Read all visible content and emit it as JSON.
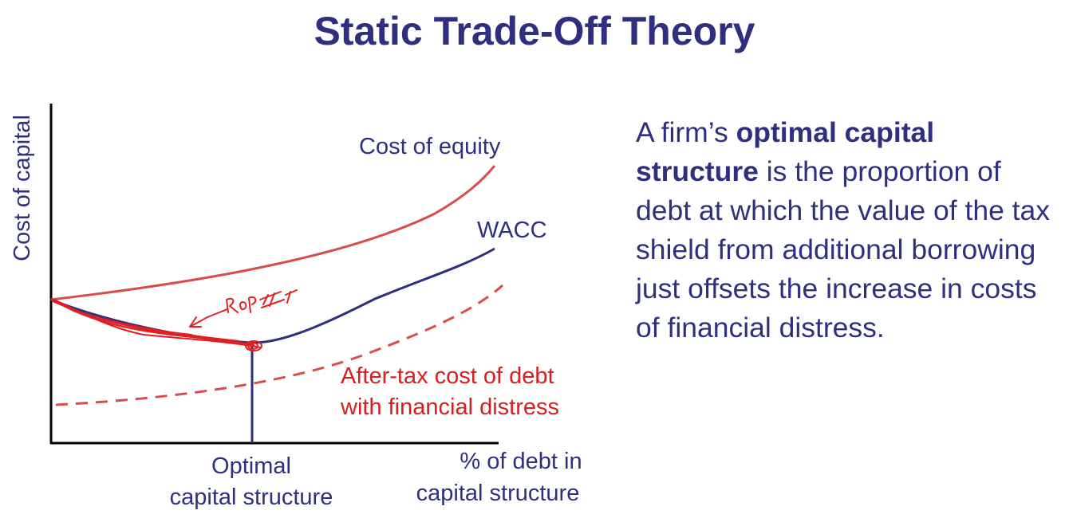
{
  "title": "Static Trade-Off Theory",
  "colors": {
    "navy": "#2e2f7f",
    "red": "#d94c4c",
    "annotation_red": "#e02020"
  },
  "description": {
    "lead": "A firm’s ",
    "bold": "optimal capital structure",
    "rest": " is the proportion of debt at which the value of the tax shield from additional borrowing just offsets the increase in costs of financial distress."
  },
  "chart_data": {
    "type": "line",
    "title": "",
    "ylabel": "Cost of capital",
    "xlabel_lines": [
      "% of debt in",
      "capital structure"
    ],
    "optimum_label_lines": [
      "Optimal",
      "capital structure"
    ],
    "series": [
      {
        "name": "Cost of equity",
        "style": "solid",
        "color": "#d94c4c"
      },
      {
        "name": "WACC",
        "style": "solid",
        "color": "#2e2f7f"
      },
      {
        "name_lines": [
          "After-tax cost of debt",
          "with financial distress"
        ],
        "style": "dashed",
        "color": "#d94c4c"
      }
    ],
    "handwritten_annotation": "Rop II"
  }
}
